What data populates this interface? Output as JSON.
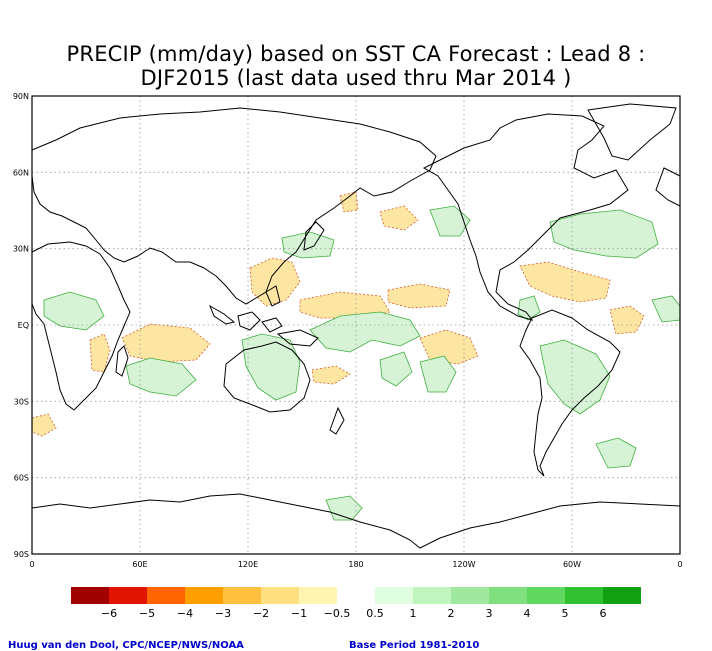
{
  "title": {
    "line1": "PRECIP (mm/day) based on SST CA Forecast : Lead 8 :",
    "line2": "DJF2015 (last data used thru Mar 2014 )"
  },
  "axes": {
    "lat_labels": [
      "90N",
      "60N",
      "30N",
      "EQ",
      "30S",
      "60S",
      "90S"
    ],
    "lon_labels": [
      "0",
      "60E",
      "120E",
      "180",
      "120W",
      "60W",
      "0"
    ]
  },
  "colorbar": {
    "colors": [
      "#a00000",
      "#e01400",
      "#ff6400",
      "#ffa000",
      "#ffc040",
      "#ffe080",
      "#fff5b0",
      "#ffffff",
      "#e0ffe0",
      "#c0f5c0",
      "#a0e8a0",
      "#80e080",
      "#60d860",
      "#30c030",
      "#10a010"
    ],
    "labels": [
      "−6",
      "−5",
      "−4",
      "−3",
      "−2",
      "−1",
      "−0.5",
      "0.5",
      "1",
      "2",
      "3",
      "4",
      "5",
      "6"
    ]
  },
  "credits": {
    "left": "Huug van den Dool, CPC/NCEP/NWS/NOAA",
    "right": "Base Period 1981-2010"
  },
  "map_colors": {
    "grid": "#9a9a9a",
    "coast": "#000000",
    "dry": "#fde6a2",
    "dry_edge": "#d65a2a",
    "wet": "#d6f3d6",
    "wet_edge": "#3fae3f"
  }
}
